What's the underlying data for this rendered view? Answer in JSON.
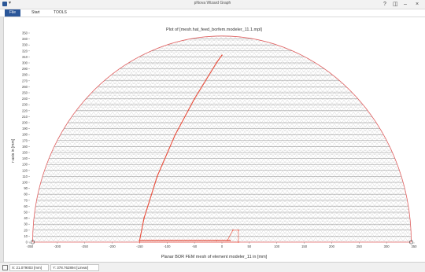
{
  "window": {
    "title": "pNova Wizard Graph",
    "menu_caret": "▾",
    "controls": {
      "help": "?",
      "restore": "◫",
      "minimize": "–",
      "close": "×"
    }
  },
  "ribbon": {
    "tabs": [
      {
        "label": "File",
        "active": true
      },
      {
        "label": "Start",
        "active": false
      },
      {
        "label": "TOOLS",
        "active": false
      }
    ]
  },
  "status": {
    "x_readout": "X: 21.079003 [mm]",
    "y_readout": "Y: 378.762894 [Linear]"
  },
  "colors": {
    "accent": "#2b579a",
    "boundary": "#e06060",
    "mesh": "#b8b8b8",
    "path": "#e84c3a",
    "gridline": "#909090"
  },
  "icons": {
    "status_icon": "pointer-icon"
  },
  "chart_data": {
    "type": "scatter",
    "title": "Plot of [mesh.hat_feed_borfem.modeler_11.1.mpl]",
    "xlabel": "Planar BOR FEM mesh of element modeler_11 in [mm]",
    "ylabel": "r-axis in [mm]",
    "xlim": [
      -350,
      350
    ],
    "ylim": [
      0,
      350
    ],
    "x_ticks": [
      -350,
      -300,
      -250,
      -200,
      -150,
      -100,
      -50,
      0,
      50,
      100,
      150,
      200,
      250,
      300,
      350
    ],
    "y_ticks": [
      0,
      10,
      20,
      30,
      40,
      50,
      60,
      70,
      80,
      90,
      100,
      110,
      120,
      130,
      140,
      150,
      160,
      170,
      180,
      190,
      200,
      210,
      220,
      230,
      240,
      250,
      260,
      270,
      280,
      290,
      300,
      310,
      320,
      330,
      340,
      350
    ],
    "series": [
      {
        "kind": "outer-boundary",
        "shape": "semicircle",
        "radius": 345
      },
      {
        "kind": "feed-path",
        "points": [
          [
            -150,
            3
          ],
          [
            -142,
            40
          ],
          [
            -118,
            110
          ],
          [
            -85,
            180
          ],
          [
            -50,
            240
          ],
          [
            -10,
            300
          ],
          [
            0,
            313
          ]
        ]
      },
      {
        "kind": "feed-path",
        "points": [
          [
            -150,
            3
          ],
          [
            -10,
            3
          ],
          [
            15,
            3
          ]
        ]
      },
      {
        "kind": "feed-structure",
        "points": [
          [
            -150,
            3
          ],
          [
            -150,
            0
          ],
          [
            30,
            0
          ],
          [
            30,
            20
          ],
          [
            20,
            20
          ],
          [
            10,
            3
          ]
        ]
      }
    ]
  }
}
